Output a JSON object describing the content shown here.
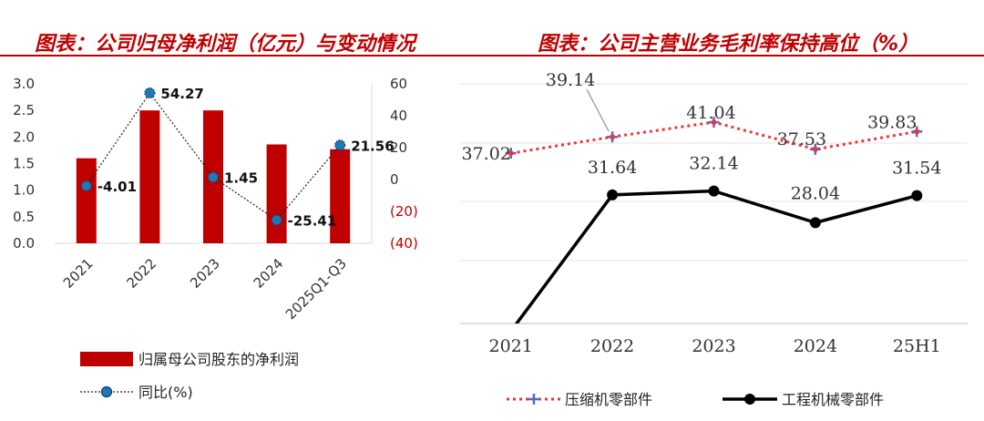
{
  "left_title": "图表：公司归母净利润（亿元）与变动情况",
  "right_title": "图表：公司主营业务毛利率保持高位（%）",
  "chart_data": [
    {
      "type": "bar",
      "categories": [
        "2021",
        "2022",
        "2023",
        "2024",
        "2025Q1-Q3"
      ],
      "series": [
        {
          "name": "归属母公司股东的净利润",
          "values": [
            1.6,
            2.5,
            2.5,
            1.86,
            1.77
          ],
          "color": "#c00000",
          "axis": "left"
        },
        {
          "name": "同比(%)",
          "type": "line",
          "values": [
            -4.01,
            54.27,
            1.45,
            -25.41,
            21.56
          ],
          "labels": [
            "-4.01",
            "54.27",
            "1.45",
            "-25.41",
            "21.56"
          ],
          "color": "#1f77b4",
          "axis": "right"
        }
      ],
      "yleft_ticks": [
        "3.0",
        "2.5",
        "2.0",
        "1.5",
        "1.0",
        "0.5",
        "0.0"
      ],
      "yleft_lim": [
        0,
        3
      ],
      "yright_ticks": [
        "60",
        "40",
        "20",
        "0",
        "(20)",
        "(40)"
      ],
      "yright_lim": [
        -40,
        60
      ],
      "legend_position": "bottom"
    },
    {
      "type": "line",
      "categories": [
        "2021",
        "2022",
        "2023",
        "2024",
        "25H1"
      ],
      "series": [
        {
          "name": "压缩机零部件",
          "values": [
            37.02,
            39.14,
            41.04,
            37.53,
            39.83
          ],
          "labels": [
            "37.02",
            "39.14",
            "41.04",
            "37.53",
            "39.83"
          ],
          "color": "#e8383d",
          "style": "dotted"
        },
        {
          "name": "工程机械零部件",
          "values": [
            14.0,
            31.64,
            32.14,
            28.04,
            31.54
          ],
          "labels": [
            "",
            "31.64",
            "32.14",
            "28.04",
            "31.54"
          ],
          "color": "#000000",
          "style": "solid"
        }
      ],
      "grid": true,
      "legend_position": "bottom"
    }
  ]
}
